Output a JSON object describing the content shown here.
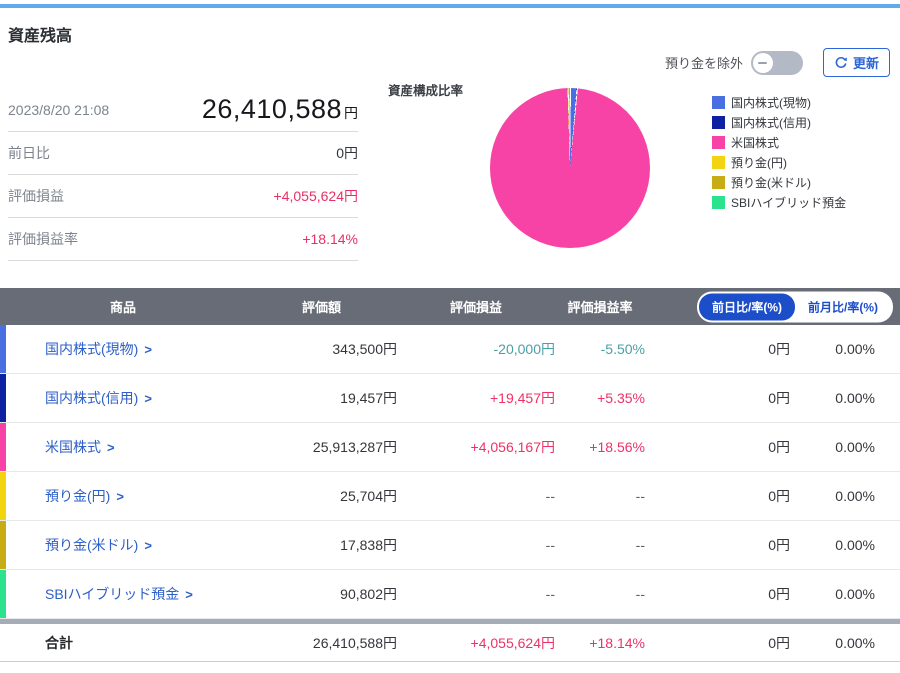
{
  "page": {
    "title": "資産残高"
  },
  "summary": {
    "timestamp": "2023/8/20 21:08",
    "total_value": "26,410,588",
    "total_unit": "円",
    "rows": [
      {
        "label": "前日比",
        "value": "0円",
        "tone": "default"
      },
      {
        "label": "評価損益",
        "value": "+4,055,624円",
        "tone": "positive"
      },
      {
        "label": "評価損益率",
        "value": "+18.14%",
        "tone": "positive"
      }
    ]
  },
  "controls": {
    "exclude_toggle_label": "預り金を除外",
    "toggle_state": "off",
    "refresh_label": "更新",
    "refresh_icon": "refresh-icon",
    "toggle_dash_icon": "minus-icon"
  },
  "chart_data": {
    "type": "pie",
    "title": "資産構成比率",
    "legend_position": "right",
    "direction": "clockwise",
    "start_angle_deg": 0,
    "slices": [
      {
        "label": "国内株式(現物)",
        "value": 343500,
        "pct": 1.3,
        "color": "#4a6fe0"
      },
      {
        "label": "国内株式(信用)",
        "value": 19457,
        "pct": 0.07,
        "color": "#0d21a1"
      },
      {
        "label": "米国株式",
        "value": 25913287,
        "pct": 98.12,
        "color": "#f743a6"
      },
      {
        "label": "預り金(円)",
        "value": 25704,
        "pct": 0.1,
        "color": "#f2d411"
      },
      {
        "label": "預り金(米ドル)",
        "value": 17838,
        "pct": 0.07,
        "color": "#c8ac15"
      },
      {
        "label": "SBIハイブリッド預金",
        "value": 90802,
        "pct": 0.34,
        "color": "#2be28f"
      }
    ]
  },
  "table": {
    "headers": [
      "商品",
      "評価額",
      "評価損益",
      "評価損益率"
    ],
    "period_toggle": {
      "active": "前日比/率(%)",
      "inactive": "前月比/率(%)"
    },
    "rows": [
      {
        "name": "国内株式(現物)",
        "stripe": "#4a6fe0",
        "value": "343,500円",
        "pl": "-20,000円",
        "pl_rate": "-5.50%",
        "pl_tone": "negative",
        "day": "0円",
        "day_rate": "0.00%"
      },
      {
        "name": "国内株式(信用)",
        "stripe": "#0d21a1",
        "value": "19,457円",
        "pl": "+19,457円",
        "pl_rate": "+5.35%",
        "pl_tone": "positive",
        "day": "0円",
        "day_rate": "0.00%"
      },
      {
        "name": "米国株式",
        "stripe": "#f743a6",
        "value": "25,913,287円",
        "pl": "+4,056,167円",
        "pl_rate": "+18.56%",
        "pl_tone": "positive",
        "day": "0円",
        "day_rate": "0.00%"
      },
      {
        "name": "預り金(円)",
        "stripe": "#f2d411",
        "value": "25,704円",
        "pl": "--",
        "pl_rate": "--",
        "pl_tone": "neutral",
        "day": "0円",
        "day_rate": "0.00%"
      },
      {
        "name": "預り金(米ドル)",
        "stripe": "#c8ac15",
        "value": "17,838円",
        "pl": "--",
        "pl_rate": "--",
        "pl_tone": "neutral",
        "day": "0円",
        "day_rate": "0.00%"
      },
      {
        "name": "SBIハイブリッド預金",
        "stripe": "#2be28f",
        "value": "90,802円",
        "pl": "--",
        "pl_rate": "--",
        "pl_tone": "neutral",
        "day": "0円",
        "day_rate": "0.00%"
      }
    ],
    "total": {
      "name": "合計",
      "value": "26,410,588円",
      "pl": "+4,055,624円",
      "pl_rate": "+18.14%",
      "pl_tone": "positive",
      "day": "0円",
      "day_rate": "0.00%"
    }
  },
  "colors": {
    "accent_blue": "#1d4ec9",
    "link_blue": "#2d5fc8",
    "positive": "#ee3168",
    "negative": "#4b9fa6",
    "header_bg": "#676c76",
    "top_line": "#5fabec"
  }
}
